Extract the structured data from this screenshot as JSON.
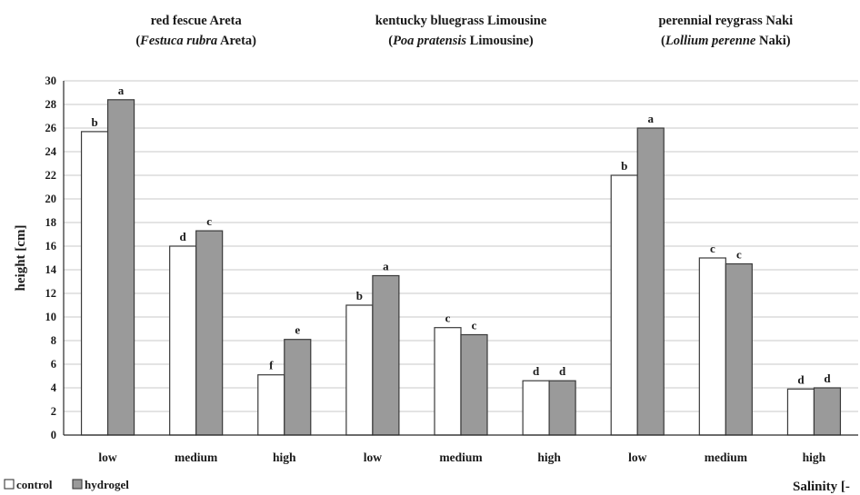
{
  "chart_data": {
    "type": "bar",
    "ylabel": "height [cm]",
    "xlabel": "Salinity [-",
    "ylim": [
      0,
      30
    ],
    "ytick_step": 2,
    "grid": true,
    "legend_placement": "bottom-left",
    "series": [
      {
        "name": "control",
        "color": "#ffffff"
      },
      {
        "name": "hydrogel",
        "color": "#9a9a9a"
      }
    ],
    "groups": [
      {
        "title_line1": "red fescue Areta",
        "title_line2_open": "(",
        "title_line2_italic": "Festuca rubra",
        "title_line2_rest": " Areta)",
        "categories": [
          "low",
          "medium",
          "high"
        ],
        "control": [
          25.7,
          16.0,
          5.1
        ],
        "hydrogel": [
          28.4,
          17.3,
          8.1
        ],
        "control_labels": [
          "b",
          "d",
          "f"
        ],
        "hydrogel_labels": [
          "a",
          "c",
          "e"
        ]
      },
      {
        "title_line1": "kentucky bluegrass Limousine",
        "title_line2_open": "(",
        "title_line2_italic": "Poa pratensis",
        "title_line2_rest": " Limousine)",
        "categories": [
          "low",
          "medium",
          "high"
        ],
        "control": [
          11.0,
          9.1,
          4.6
        ],
        "hydrogel": [
          13.5,
          8.5,
          4.6
        ],
        "control_labels": [
          "b",
          "c",
          "d"
        ],
        "hydrogel_labels": [
          "a",
          "c",
          "d"
        ]
      },
      {
        "title_line1": "perennial reygrass Naki",
        "title_line2_open": "(",
        "title_line2_italic": "Lollium perenne",
        "title_line2_rest": " Naki)",
        "categories": [
          "low",
          "medium",
          "high"
        ],
        "control": [
          22.0,
          15.0,
          3.9
        ],
        "hydrogel": [
          26.0,
          14.5,
          4.0
        ],
        "control_labels": [
          "b",
          "c",
          "d"
        ],
        "hydrogel_labels": [
          "a",
          "c",
          "d"
        ]
      }
    ]
  }
}
